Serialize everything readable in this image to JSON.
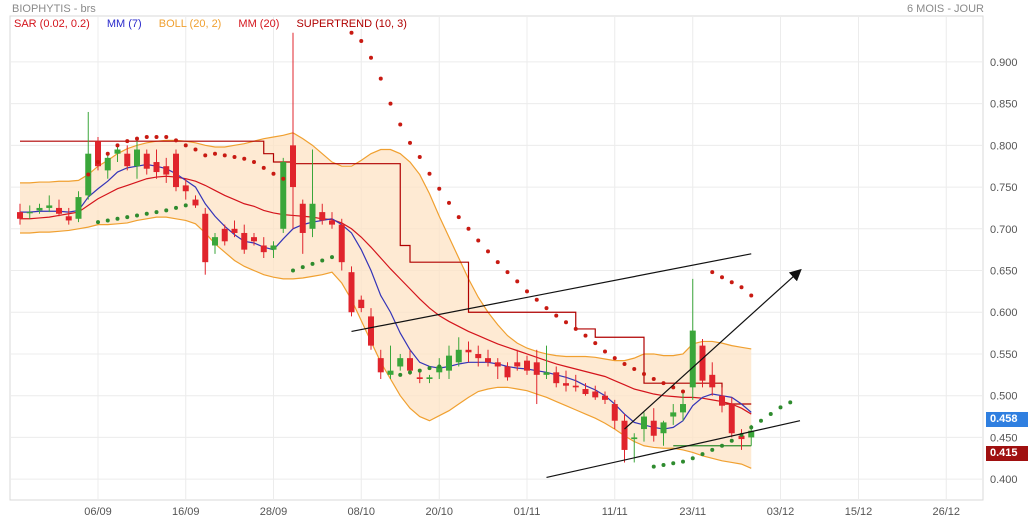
{
  "header": {
    "title": "BIOPHYTIS - brs",
    "period": "6 MOIS - JOUR"
  },
  "legend": [
    {
      "label": "SAR (0.02, 0.2)",
      "color": "#d4141c"
    },
    {
      "label": "MM (7)",
      "color": "#2a2acb"
    },
    {
      "label": "BOLL (20, 2)",
      "color": "#f0a030"
    },
    {
      "label": "MM (20)",
      "color": "#d4141c"
    },
    {
      "label": "SUPERTREND (10, 3)",
      "color": "#b00000"
    }
  ],
  "tags": {
    "last": "0.458",
    "supertrend": "0.415",
    "last_color": "#2f7fe0",
    "supertrend_color": "#a01010"
  },
  "chart_data": {
    "type": "candlestick",
    "title": "BIOPHYTIS - brs",
    "ylim": [
      0.375,
      0.955
    ],
    "y_ticks": [
      "0.900",
      "0.850",
      "0.800",
      "0.750",
      "0.700",
      "0.650",
      "0.600",
      "0.550",
      "0.500",
      "0.450",
      "0.400"
    ],
    "x_ticks": [
      "06/09",
      "16/09",
      "28/09",
      "08/10",
      "20/10",
      "01/11",
      "11/11",
      "23/11",
      "03/12",
      "15/12",
      "26/12"
    ],
    "grid": true,
    "candles": [
      [
        0.72,
        0.73,
        0.705,
        0.712
      ],
      [
        0.72,
        0.728,
        0.712,
        0.72
      ],
      [
        0.722,
        0.73,
        0.718,
        0.725
      ],
      [
        0.725,
        0.74,
        0.72,
        0.728
      ],
      [
        0.725,
        0.735,
        0.715,
        0.718
      ],
      [
        0.715,
        0.725,
        0.705,
        0.71
      ],
      [
        0.712,
        0.745,
        0.708,
        0.738
      ],
      [
        0.74,
        0.84,
        0.735,
        0.79
      ],
      [
        0.805,
        0.81,
        0.77,
        0.775
      ],
      [
        0.77,
        0.79,
        0.76,
        0.785
      ],
      [
        0.79,
        0.8,
        0.78,
        0.795
      ],
      [
        0.79,
        0.8,
        0.77,
        0.775
      ],
      [
        0.775,
        0.805,
        0.76,
        0.795
      ],
      [
        0.79,
        0.795,
        0.765,
        0.772
      ],
      [
        0.78,
        0.795,
        0.76,
        0.768
      ],
      [
        0.775,
        0.785,
        0.755,
        0.765
      ],
      [
        0.79,
        0.795,
        0.745,
        0.75
      ],
      [
        0.752,
        0.76,
        0.735,
        0.745
      ],
      [
        0.735,
        0.74,
        0.725,
        0.728
      ],
      [
        0.718,
        0.725,
        0.645,
        0.66
      ],
      [
        0.68,
        0.695,
        0.67,
        0.69
      ],
      [
        0.7,
        0.705,
        0.68,
        0.685
      ],
      [
        0.7,
        0.71,
        0.69,
        0.695
      ],
      [
        0.695,
        0.705,
        0.67,
        0.675
      ],
      [
        0.69,
        0.695,
        0.68,
        0.685
      ],
      [
        0.68,
        0.69,
        0.665,
        0.672
      ],
      [
        0.675,
        0.685,
        0.665,
        0.68
      ],
      [
        0.7,
        0.785,
        0.695,
        0.78
      ],
      [
        0.8,
        0.935,
        0.7,
        0.75
      ],
      [
        0.73,
        0.735,
        0.67,
        0.695
      ],
      [
        0.7,
        0.795,
        0.69,
        0.73
      ],
      [
        0.72,
        0.73,
        0.705,
        0.71
      ],
      [
        0.71,
        0.72,
        0.7,
        0.705
      ],
      [
        0.705,
        0.712,
        0.65,
        0.66
      ],
      [
        0.648,
        0.655,
        0.595,
        0.6
      ],
      [
        0.615,
        0.62,
        0.6,
        0.605
      ],
      [
        0.595,
        0.605,
        0.555,
        0.56
      ],
      [
        0.545,
        0.555,
        0.52,
        0.528
      ],
      [
        0.525,
        0.56,
        0.52,
        0.53
      ],
      [
        0.535,
        0.55,
        0.53,
        0.545
      ],
      [
        0.545,
        0.555,
        0.525,
        0.53
      ],
      [
        0.522,
        0.53,
        0.515,
        0.52
      ],
      [
        0.52,
        0.525,
        0.515,
        0.522
      ],
      [
        0.528,
        0.545,
        0.52,
        0.535
      ],
      [
        0.53,
        0.56,
        0.52,
        0.548
      ],
      [
        0.54,
        0.57,
        0.535,
        0.555
      ],
      [
        0.555,
        0.565,
        0.54,
        0.552
      ],
      [
        0.55,
        0.56,
        0.535,
        0.545
      ],
      [
        0.545,
        0.555,
        0.535,
        0.54
      ],
      [
        0.54,
        0.545,
        0.52,
        0.535
      ],
      [
        0.535,
        0.54,
        0.518,
        0.522
      ],
      [
        0.54,
        0.555,
        0.53,
        0.535
      ],
      [
        0.542,
        0.548,
        0.525,
        0.53
      ],
      [
        0.54,
        0.555,
        0.49,
        0.525
      ],
      [
        0.525,
        0.56,
        0.52,
        0.528
      ],
      [
        0.528,
        0.535,
        0.51,
        0.515
      ],
      [
        0.515,
        0.53,
        0.505,
        0.512
      ],
      [
        0.512,
        0.525,
        0.505,
        0.51
      ],
      [
        0.508,
        0.515,
        0.5,
        0.502
      ],
      [
        0.505,
        0.512,
        0.495,
        0.498
      ],
      [
        0.5,
        0.505,
        0.49,
        0.495
      ],
      [
        0.49,
        0.495,
        0.46,
        0.47
      ],
      [
        0.47,
        0.478,
        0.42,
        0.435
      ],
      [
        0.448,
        0.455,
        0.42,
        0.45
      ],
      [
        0.46,
        0.48,
        0.445,
        0.475
      ],
      [
        0.47,
        0.485,
        0.445,
        0.452
      ],
      [
        0.455,
        0.47,
        0.44,
        0.468
      ],
      [
        0.475,
        0.49,
        0.465,
        0.48
      ],
      [
        0.48,
        0.505,
        0.47,
        0.49
      ],
      [
        0.51,
        0.64,
        0.495,
        0.578
      ],
      [
        0.56,
        0.568,
        0.51,
        0.518
      ],
      [
        0.525,
        0.54,
        0.5,
        0.51
      ],
      [
        0.5,
        0.51,
        0.48,
        0.488
      ],
      [
        0.49,
        0.498,
        0.45,
        0.455
      ],
      [
        0.452,
        0.46,
        0.435,
        0.448
      ],
      [
        0.45,
        0.465,
        0.44,
        0.458
      ]
    ],
    "series": [
      {
        "name": "SAR (0.02, 0.2)",
        "color": "#c81a12",
        "style": "dots",
        "x0": 0,
        "values": [
          null,
          null,
          null,
          null,
          null,
          null,
          null,
          0.765,
          0.78,
          0.79,
          0.8,
          0.805,
          0.808,
          0.81,
          0.81,
          0.81,
          0.806,
          0.8,
          0.795,
          0.788,
          0.79,
          0.788,
          0.786,
          0.784,
          0.78,
          0.773,
          0.766,
          0.76,
          null,
          null,
          null,
          null,
          null,
          null,
          0.935,
          0.925,
          0.905,
          0.88,
          0.85,
          0.825,
          0.803,
          0.786,
          0.766,
          0.748,
          0.731,
          0.714,
          0.7,
          0.686,
          0.673,
          0.66,
          0.648,
          0.637,
          0.625,
          0.615,
          0.605,
          0.596,
          0.588,
          0.58,
          0.572,
          0.563,
          0.553,
          0.545,
          0.538,
          0.532,
          0.526,
          0.52,
          0.515,
          0.51,
          0.505,
          null,
          null,
          0.648,
          0.642,
          0.636,
          0.63,
          0.62
        ]
      },
      {
        "name": "SAR (0.02, 0.2) support",
        "color": "#2e8b2e",
        "style": "dots",
        "x0": 0,
        "values": [
          null,
          null,
          null,
          null,
          null,
          null,
          null,
          null,
          0.708,
          0.71,
          0.712,
          0.714,
          0.716,
          0.718,
          0.72,
          0.722,
          0.725,
          0.728,
          null,
          null,
          null,
          null,
          null,
          null,
          null,
          null,
          null,
          null,
          0.65,
          0.654,
          0.658,
          0.662,
          0.666,
          null,
          null,
          null,
          null,
          null,
          null,
          0.525,
          0.528,
          0.53,
          0.533,
          0.535,
          null,
          null,
          null,
          null,
          null,
          null,
          null,
          null,
          null,
          null,
          null,
          null,
          null,
          null,
          null,
          null,
          null,
          null,
          null,
          null,
          null,
          0.415,
          0.417,
          0.419,
          0.421,
          0.425,
          0.43,
          0.435,
          0.44,
          0.446,
          0.453,
          0.462,
          0.47,
          0.478,
          0.486,
          0.492
        ]
      },
      {
        "name": "MM (7)",
        "color": "#3434b8",
        "style": "line",
        "x0": 0,
        "values": [
          0.72,
          0.72,
          0.721,
          0.721,
          0.721,
          0.72,
          0.722,
          0.738,
          0.748,
          0.757,
          0.768,
          0.773,
          0.775,
          0.777,
          0.775,
          0.772,
          0.766,
          0.758,
          0.75,
          0.73,
          0.715,
          0.703,
          0.693,
          0.685,
          0.683,
          0.678,
          0.675,
          0.688,
          0.7,
          0.705,
          0.708,
          0.71,
          0.712,
          0.705,
          0.695,
          0.675,
          0.65,
          0.62,
          0.6,
          0.575,
          0.555,
          0.54,
          0.535,
          0.533,
          0.535,
          0.538,
          0.54,
          0.54,
          0.54,
          0.538,
          0.535,
          0.533,
          0.532,
          0.53,
          0.528,
          0.525,
          0.522,
          0.518,
          0.512,
          0.507,
          0.5,
          0.49,
          0.478,
          0.468,
          0.465,
          0.462,
          0.46,
          0.462,
          0.47,
          0.488,
          0.498,
          0.502,
          0.5,
          0.498,
          0.49,
          0.48
        ]
      },
      {
        "name": "MM (20)",
        "color": "#d4141c",
        "style": "line",
        "x0": 0,
        "values": [
          0.712,
          0.712,
          0.713,
          0.714,
          0.716,
          0.718,
          0.72,
          0.728,
          0.736,
          0.742,
          0.748,
          0.752,
          0.756,
          0.76,
          0.762,
          0.763,
          0.762,
          0.76,
          0.757,
          0.752,
          0.746,
          0.74,
          0.735,
          0.73,
          0.727,
          0.722,
          0.719,
          0.717,
          0.716,
          0.715,
          0.714,
          0.712,
          0.711,
          0.707,
          0.7,
          0.69,
          0.678,
          0.665,
          0.652,
          0.64,
          0.628,
          0.616,
          0.605,
          0.596,
          0.589,
          0.583,
          0.577,
          0.572,
          0.567,
          0.562,
          0.558,
          0.554,
          0.55,
          0.546,
          0.542,
          0.538,
          0.535,
          0.532,
          0.529,
          0.526,
          0.523,
          0.518,
          0.513,
          0.508,
          0.505,
          0.502,
          0.5,
          0.499,
          0.498,
          0.498,
          0.497,
          0.495,
          0.493,
          0.49,
          0.485,
          0.478
        ]
      },
      {
        "name": "BOLL (20, 2) upper",
        "color": "#f0a030",
        "style": "line",
        "x0": 0,
        "values": [
          0.755,
          0.755,
          0.756,
          0.756,
          0.757,
          0.757,
          0.758,
          0.765,
          0.775,
          0.782,
          0.79,
          0.796,
          0.8,
          0.803,
          0.805,
          0.806,
          0.806,
          0.805,
          0.803,
          0.8,
          0.798,
          0.798,
          0.8,
          0.802,
          0.805,
          0.808,
          0.81,
          0.812,
          0.815,
          0.808,
          0.8,
          0.79,
          0.78,
          0.775,
          0.775,
          0.782,
          0.79,
          0.795,
          0.795,
          0.79,
          0.78,
          0.765,
          0.742,
          0.715,
          0.69,
          0.665,
          0.64,
          0.618,
          0.6,
          0.585,
          0.572,
          0.563,
          0.557,
          0.553,
          0.55,
          0.548,
          0.547,
          0.547,
          0.547,
          0.546,
          0.544,
          0.542,
          0.542,
          0.545,
          0.55,
          0.55,
          0.548,
          0.548,
          0.55,
          0.562,
          0.565,
          0.565,
          0.563,
          0.56,
          0.558,
          0.556
        ]
      },
      {
        "name": "BOLL (20, 2) lower",
        "color": "#f0a030",
        "style": "line",
        "x0": 0,
        "values": [
          0.695,
          0.695,
          0.696,
          0.696,
          0.697,
          0.698,
          0.7,
          0.702,
          0.705,
          0.705,
          0.706,
          0.707,
          0.71,
          0.712,
          0.714,
          0.714,
          0.712,
          0.71,
          0.706,
          0.695,
          0.682,
          0.672,
          0.662,
          0.655,
          0.65,
          0.645,
          0.642,
          0.64,
          0.64,
          0.641,
          0.643,
          0.645,
          0.648,
          0.635,
          0.615,
          0.59,
          0.565,
          0.54,
          0.52,
          0.5,
          0.485,
          0.475,
          0.47,
          0.476,
          0.482,
          0.49,
          0.498,
          0.505,
          0.508,
          0.51,
          0.51,
          0.508,
          0.506,
          0.502,
          0.498,
          0.493,
          0.488,
          0.483,
          0.478,
          0.473,
          0.467,
          0.46,
          0.452,
          0.445,
          0.44,
          0.438,
          0.437,
          0.437,
          0.435,
          0.432,
          0.428,
          0.425,
          0.422,
          0.42,
          0.418,
          0.413
        ]
      },
      {
        "name": "SUPERTREND (10, 3)",
        "color": "#b00000",
        "style": "step",
        "x0": 0,
        "values": [
          0.805,
          0.805,
          0.805,
          0.805,
          0.805,
          0.805,
          0.805,
          0.805,
          0.805,
          0.805,
          0.805,
          0.805,
          0.805,
          0.805,
          0.805,
          0.805,
          0.805,
          0.805,
          0.805,
          0.805,
          0.805,
          0.805,
          0.805,
          0.805,
          0.805,
          0.79,
          0.78,
          0.78,
          0.778,
          0.778,
          0.778,
          0.778,
          0.778,
          0.778,
          0.778,
          0.778,
          0.778,
          0.778,
          0.778,
          0.68,
          0.66,
          0.66,
          0.66,
          0.66,
          0.66,
          0.66,
          0.6,
          0.6,
          0.6,
          0.6,
          0.6,
          0.6,
          0.6,
          0.6,
          0.6,
          0.6,
          0.6,
          0.58,
          0.58,
          0.57,
          0.57,
          0.57,
          0.57,
          0.57,
          0.515,
          0.515,
          0.515,
          0.515,
          0.515,
          0.515,
          0.515,
          0.515,
          0.49,
          0.49,
          0.49,
          0.49
        ]
      },
      {
        "name": "SUPERTREND (10, 3) support",
        "color": "#2e8b2e",
        "style": "line",
        "x0": 0,
        "values": [
          null,
          null,
          null,
          null,
          null,
          null,
          null,
          null,
          null,
          null,
          null,
          null,
          null,
          null,
          null,
          null,
          null,
          null,
          null,
          null,
          null,
          null,
          null,
          null,
          null,
          null,
          null,
          null,
          null,
          null,
          null,
          null,
          null,
          null,
          null,
          null,
          null,
          null,
          null,
          null,
          null,
          null,
          null,
          null,
          null,
          null,
          null,
          null,
          null,
          null,
          null,
          null,
          null,
          null,
          null,
          null,
          null,
          null,
          null,
          null,
          null,
          null,
          null,
          null,
          null,
          null,
          null,
          0.44,
          0.44,
          0.44,
          0.44,
          0.44,
          0.44,
          0.44,
          0.44,
          0.44
        ]
      }
    ],
    "trendlines": [
      {
        "from": [
          34,
          0.577
        ],
        "to": [
          75,
          0.67
        ]
      },
      {
        "from": [
          54,
          0.402
        ],
        "to": [
          80,
          0.47
        ]
      },
      {
        "from": [
          62,
          0.46
        ],
        "to": [
          80,
          0.65
        ],
        "arrow": true
      }
    ]
  }
}
